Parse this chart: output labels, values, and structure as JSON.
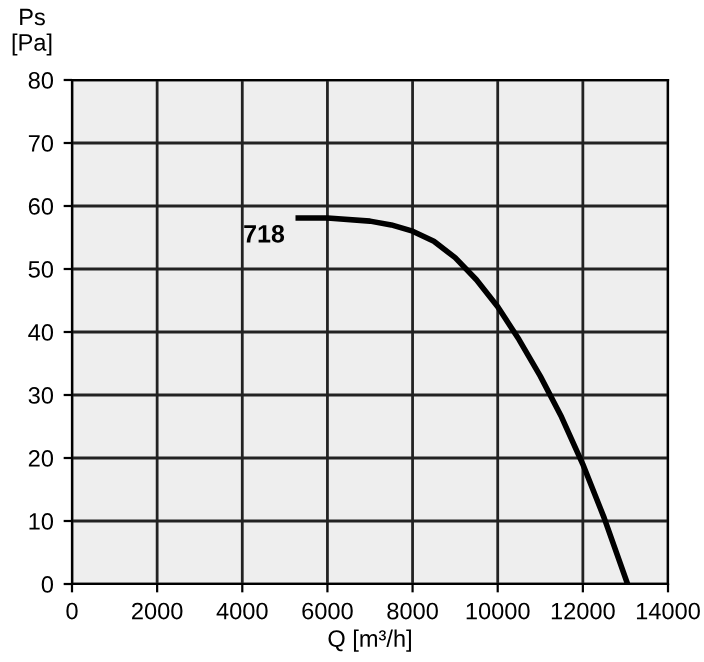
{
  "chart_data": {
    "type": "line",
    "xlabel": "Q [m³/h]",
    "ylabel": "Ps\n[Pa]",
    "x": [
      5250,
      6000,
      7000,
      7500,
      8000,
      8500,
      9000,
      9500,
      10000,
      10500,
      11000,
      11500,
      12000,
      12500,
      13050
    ],
    "series": [
      {
        "name": "718",
        "color": "#000000",
        "values": [
          58.1,
          58.1,
          57.6,
          57,
          56,
          54.4,
          51.8,
          48.3,
          44,
          38.8,
          33,
          26.5,
          19,
          10.5,
          0
        ]
      }
    ],
    "xlim": [
      0,
      14000
    ],
    "xticks": [
      0,
      2000,
      4000,
      6000,
      8000,
      10000,
      12000,
      14000
    ],
    "ylim": [
      0,
      80
    ],
    "yticks": [
      0,
      10,
      20,
      30,
      40,
      50,
      60,
      70,
      80
    ],
    "grid": true,
    "marker": "none",
    "line_style": "solid",
    "legend": false
  }
}
